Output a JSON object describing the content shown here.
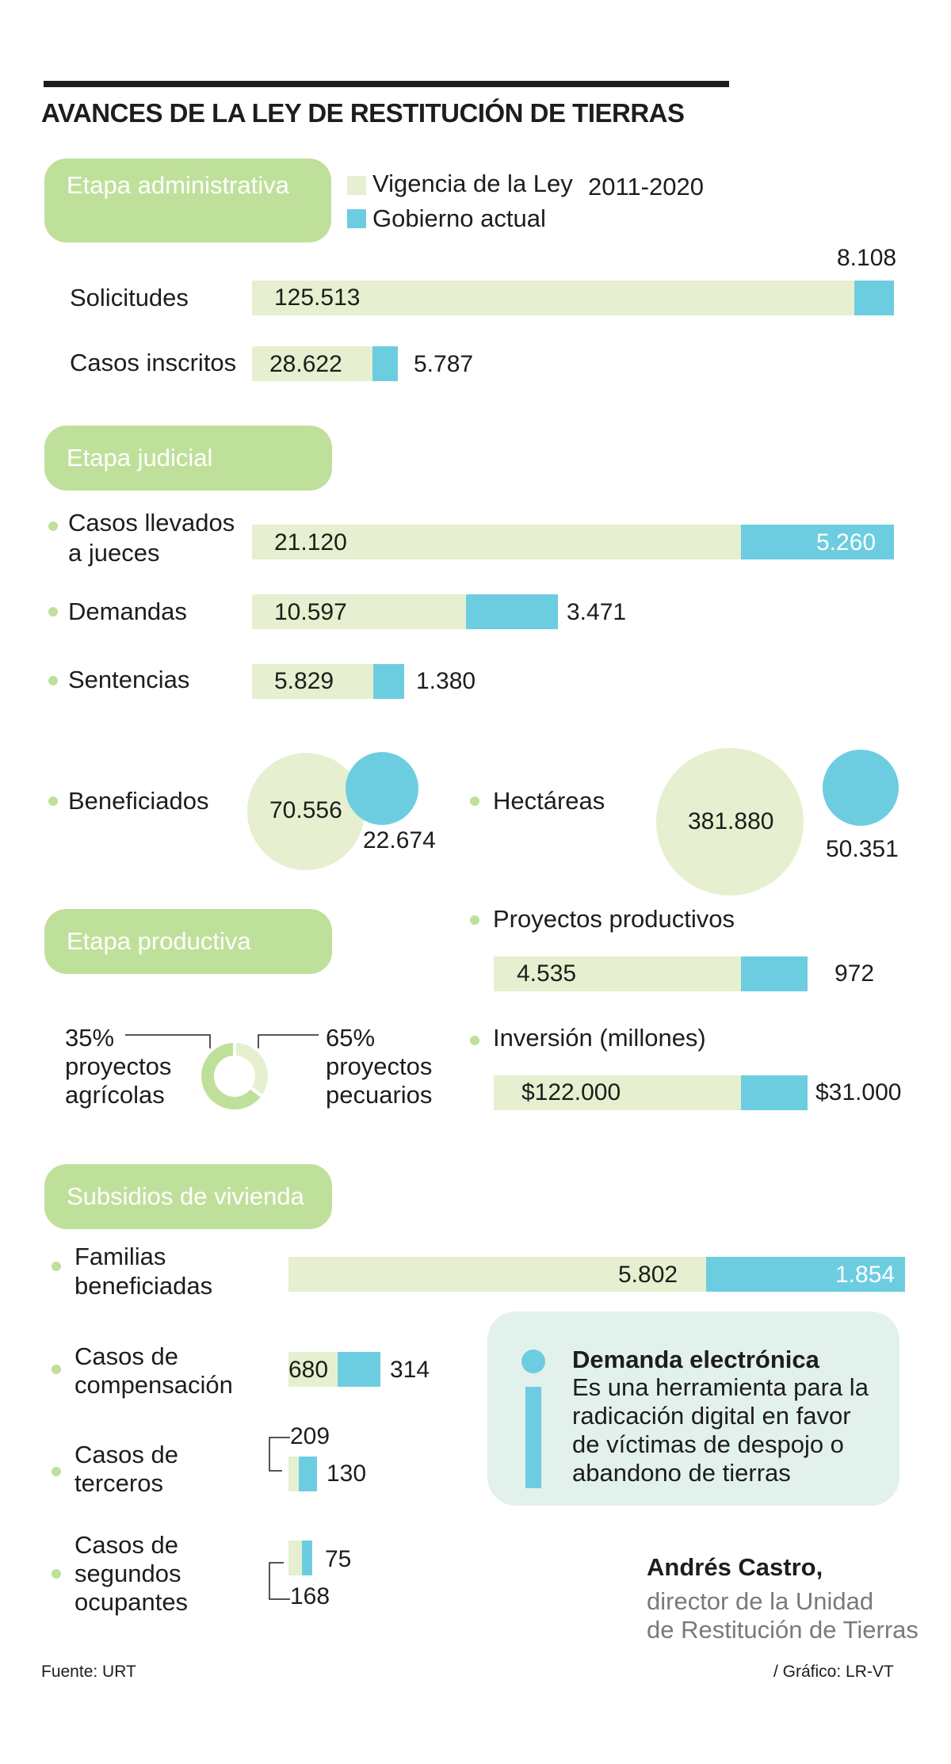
{
  "title": "AVANCES DE LA LEY DE RESTITUCIÓN DE TIERRAS",
  "legend": {
    "vigencia": "Vigencia de la Ley",
    "years": "2011-2020",
    "gobierno": "Gobierno actual"
  },
  "colors": {
    "vigencia": "#e6efcf",
    "gobierno": "#6dcde0",
    "pill": "#bfe09a",
    "text": "#1d1d1b"
  },
  "sections": {
    "administrativa": "Etapa administrativa",
    "judicial": "Etapa judicial",
    "productiva": "Etapa productiva",
    "vivienda": "Subsidios de vivienda"
  },
  "administrativa": {
    "solicitudes": {
      "label": "Solicitudes",
      "vigencia": "125.513",
      "gobierno": "8.108"
    },
    "casos_inscritos": {
      "label": "Casos inscritos",
      "vigencia": "28.622",
      "gobierno": "5.787"
    }
  },
  "judicial": {
    "casos_llevados": {
      "label1": "Casos llevados",
      "label2": "a jueces",
      "vigencia": "21.120",
      "gobierno": "5.260"
    },
    "demandas": {
      "label": "Demandas",
      "vigencia": "10.597",
      "gobierno": "3.471"
    },
    "sentencias": {
      "label": "Sentencias",
      "vigencia": "5.829",
      "gobierno": "1.380"
    },
    "beneficiados": {
      "label": "Beneficiados",
      "vigencia": "70.556",
      "gobierno": "22.674"
    },
    "hectareas": {
      "label": "Hectáreas",
      "vigencia": "381.880",
      "gobierno": "50.351"
    }
  },
  "productiva": {
    "agricolas": {
      "pct": "35%",
      "line1": "proyectos",
      "line2": "agrícolas"
    },
    "pecuarios": {
      "pct": "65%",
      "line1": "proyectos",
      "line2": "pecuarios"
    },
    "proyectos": {
      "label": "Proyectos productivos",
      "vigencia": "4.535",
      "gobierno": "972"
    },
    "inversion": {
      "label": "Inversión (millones)",
      "vigencia": "$122.000",
      "gobierno": "$31.000"
    }
  },
  "vivienda": {
    "familias": {
      "label1": "Familias",
      "label2": "beneficiadas",
      "vigencia": "5.802",
      "gobierno": "1.854"
    },
    "compensacion": {
      "label1": "Casos de",
      "label2": "compensación",
      "vigencia": "680",
      "gobierno": "314"
    },
    "terceros": {
      "label1": "Casos de",
      "label2": "terceros",
      "vigencia": "209",
      "gobierno": "130"
    },
    "segundos": {
      "label1": "Casos de",
      "label2": "segundos",
      "label3": "ocupantes",
      "vigencia": "168",
      "gobierno": "75"
    }
  },
  "info_box": {
    "title": "Demanda electrónica",
    "lines": [
      "Es una herramienta para la",
      "radicación digital en favor",
      "de víctimas de despojo o",
      "abandono de tierras"
    ]
  },
  "quote": {
    "author": "Andrés Castro,",
    "role1": "director de la Unidad",
    "role2": "de Restitución de Tierras"
  },
  "footer": {
    "source": "Fuente: URT",
    "credit": "/ Gráfico: LR-VT"
  },
  "chart_data": [
    {
      "type": "bar",
      "title": "Etapa administrativa",
      "categories": [
        "Solicitudes",
        "Casos inscritos"
      ],
      "series": [
        {
          "name": "Vigencia de la Ley 2011-2020",
          "values": [
            125513,
            28622
          ]
        },
        {
          "name": "Gobierno actual",
          "values": [
            8108,
            5787
          ]
        }
      ]
    },
    {
      "type": "bar",
      "title": "Etapa judicial",
      "categories": [
        "Casos llevados a jueces",
        "Demandas",
        "Sentencias"
      ],
      "series": [
        {
          "name": "Vigencia de la Ley 2011-2020",
          "values": [
            21120,
            10597,
            5829
          ]
        },
        {
          "name": "Gobierno actual",
          "values": [
            5260,
            3471,
            1380
          ]
        }
      ]
    },
    {
      "type": "scatter",
      "title": "Etapa judicial",
      "categories": [
        "Beneficiados",
        "Hectáreas"
      ],
      "series": [
        {
          "name": "Vigencia de la Ley 2011-2020",
          "values": [
            70556,
            381880
          ]
        },
        {
          "name": "Gobierno actual",
          "values": [
            22674,
            50351
          ]
        }
      ]
    },
    {
      "type": "pie",
      "title": "Etapa productiva",
      "categories": [
        "proyectos agrícolas",
        "proyectos pecuarios"
      ],
      "values": [
        35,
        65
      ]
    },
    {
      "type": "bar",
      "categories": [
        "Proyectos productivos",
        "Inversión (millones)"
      ],
      "series": [
        {
          "name": "Vigencia de la Ley 2011-2020",
          "values": [
            4535,
            122000
          ]
        },
        {
          "name": "Gobierno actual",
          "values": [
            972,
            31000
          ]
        }
      ]
    },
    {
      "type": "bar",
      "title": "Subsidios de vivienda",
      "categories": [
        "Familias beneficiadas",
        "Casos de compensación",
        "Casos de terceros",
        "Casos de segundos ocupantes"
      ],
      "series": [
        {
          "name": "Vigencia de la Ley 2011-2020",
          "values": [
            5802,
            680,
            209,
            168
          ]
        },
        {
          "name": "Gobierno actual",
          "values": [
            1854,
            314,
            130,
            75
          ]
        }
      ]
    }
  ]
}
